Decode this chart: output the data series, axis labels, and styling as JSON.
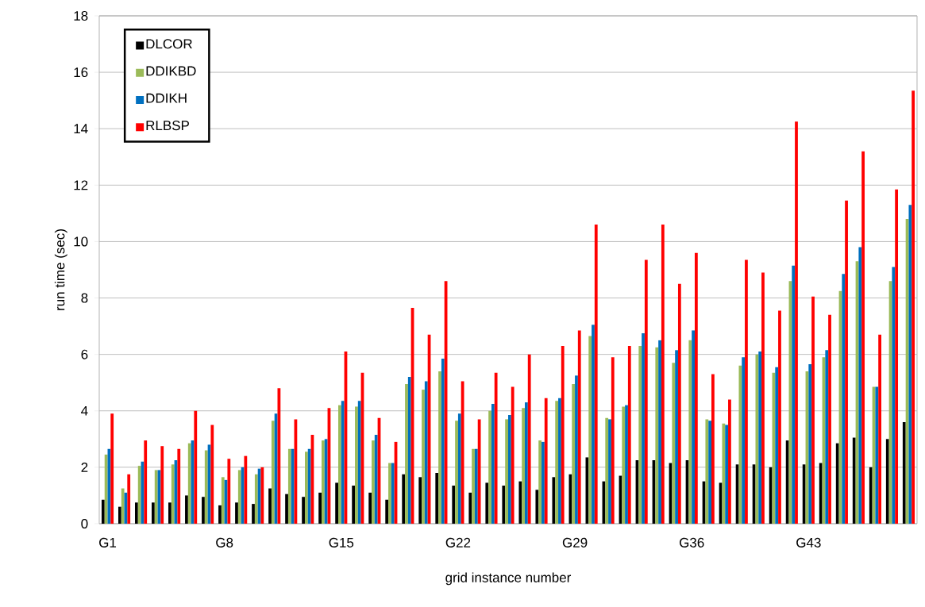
{
  "chart_data": {
    "type": "bar",
    "xlabel": "grid instance number",
    "ylabel": "run time (sec)",
    "categories": [
      "G1",
      null,
      null,
      null,
      null,
      null,
      null,
      "G8",
      null,
      null,
      null,
      null,
      null,
      null,
      "G15",
      null,
      null,
      null,
      null,
      null,
      null,
      "G22",
      null,
      null,
      null,
      null,
      null,
      null,
      "G29",
      null,
      null,
      null,
      null,
      null,
      null,
      "G36",
      null,
      null,
      null,
      null,
      null,
      null,
      "G43",
      null,
      null,
      null,
      null,
      null,
      null
    ],
    "series": [
      {
        "name": "DLCOR",
        "color": "#000000",
        "values": [
          0.85,
          0.6,
          0.75,
          0.75,
          0.75,
          1.0,
          0.95,
          0.65,
          0.75,
          0.7,
          1.25,
          1.05,
          0.95,
          1.1,
          1.45,
          1.35,
          1.1,
          0.85,
          1.75,
          1.65,
          1.8,
          1.35,
          1.1,
          1.45,
          1.35,
          1.5,
          1.2,
          1.65,
          1.75,
          2.35,
          1.5,
          1.7,
          2.25,
          2.25,
          2.15,
          2.25,
          1.5,
          1.45,
          2.1,
          2.1,
          2.0,
          2.95,
          2.1,
          2.15,
          2.85,
          3.05,
          2.0,
          3.0,
          3.6
        ]
      },
      {
        "name": "DDIKBD",
        "color": "#9bbb59",
        "values": [
          2.45,
          1.25,
          2.05,
          1.9,
          2.1,
          2.85,
          2.6,
          1.65,
          1.9,
          1.75,
          3.65,
          2.65,
          2.55,
          2.95,
          4.2,
          4.15,
          2.95,
          2.15,
          4.95,
          4.75,
          5.4,
          3.65,
          2.65,
          4.0,
          3.7,
          4.1,
          2.95,
          4.35,
          4.95,
          6.65,
          3.75,
          4.15,
          6.3,
          6.25,
          5.7,
          6.5,
          3.7,
          3.55,
          5.6,
          6.0,
          5.35,
          8.6,
          5.4,
          5.9,
          8.25,
          9.3,
          4.85,
          8.6,
          10.8
        ]
      },
      {
        "name": "DDIKH",
        "color": "#0070c0",
        "values": [
          2.65,
          1.1,
          2.2,
          1.9,
          2.25,
          2.95,
          2.8,
          1.55,
          2.0,
          1.95,
          3.9,
          2.65,
          2.65,
          3.0,
          4.35,
          4.35,
          3.15,
          2.15,
          5.2,
          5.05,
          5.85,
          3.9,
          2.65,
          4.25,
          3.85,
          4.3,
          2.9,
          4.45,
          5.25,
          7.05,
          3.7,
          4.2,
          6.75,
          6.5,
          6.15,
          6.85,
          3.65,
          3.5,
          5.9,
          6.1,
          5.55,
          9.15,
          5.65,
          6.15,
          8.85,
          9.8,
          4.85,
          9.1,
          11.3
        ]
      },
      {
        "name": "RLBSP",
        "color": "#ff0000",
        "values": [
          3.9,
          1.75,
          2.95,
          2.75,
          2.65,
          4.0,
          3.5,
          2.3,
          2.4,
          2.0,
          4.8,
          3.7,
          3.15,
          4.1,
          6.1,
          5.35,
          3.75,
          2.9,
          7.65,
          6.7,
          8.6,
          5.05,
          3.7,
          5.35,
          4.85,
          6.0,
          4.45,
          6.3,
          6.85,
          10.6,
          5.9,
          6.3,
          9.35,
          10.6,
          8.5,
          9.6,
          5.3,
          4.4,
          9.35,
          8.9,
          7.55,
          14.25,
          8.05,
          7.4,
          11.45,
          13.2,
          6.7,
          11.85,
          15.35
        ]
      }
    ],
    "ylim": [
      0,
      18
    ],
    "yticks": [
      0,
      2,
      4,
      6,
      8,
      10,
      12,
      14,
      16,
      18
    ],
    "grid": "y",
    "legend": "top left"
  }
}
